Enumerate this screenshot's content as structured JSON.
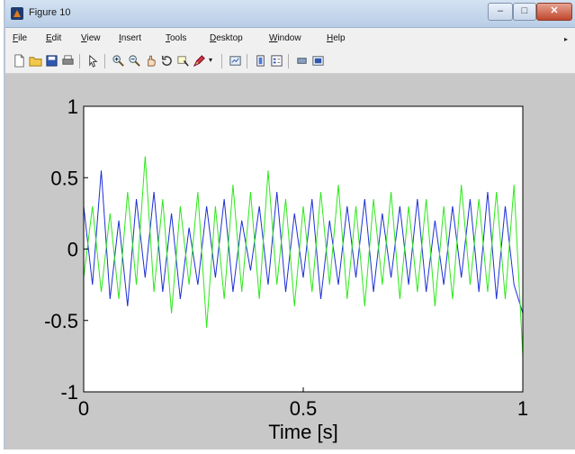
{
  "window": {
    "title": "Figure 10",
    "buttons": {
      "minimize": "–",
      "maximize": "□",
      "close": "✕"
    }
  },
  "menu": {
    "items": [
      {
        "label": "File",
        "u": "F",
        "rest": "ile"
      },
      {
        "label": "Edit",
        "u": "E",
        "rest": "dit"
      },
      {
        "label": "View",
        "u": "V",
        "rest": "iew"
      },
      {
        "label": "Insert",
        "u": "I",
        "rest": "nsert"
      },
      {
        "label": "Tools",
        "u": "T",
        "rest": "ools"
      },
      {
        "label": "Desktop",
        "u": "D",
        "rest": "esktop"
      },
      {
        "label": "Window",
        "u": "W",
        "rest": "indow"
      },
      {
        "label": "Help",
        "u": "H",
        "rest": "elp"
      }
    ],
    "overflow_arrow": "▸"
  },
  "toolbar": {
    "icons": [
      "new-figure-icon",
      "open-file-icon",
      "save-icon",
      "print-icon",
      "pointer-icon",
      "zoom-in-icon",
      "zoom-out-icon",
      "pan-icon",
      "rotate-3d-icon",
      "data-cursor-icon",
      "brush-icon",
      "brush-dropdown-icon",
      "link-plot-icon",
      "colorbar-icon",
      "legend-icon",
      "hide-plot-tools-icon",
      "show-plot-tools-icon"
    ]
  },
  "chart_data": {
    "type": "line",
    "title": "",
    "xlabel": "Time [s]",
    "ylabel": "",
    "xlim": [
      0,
      1
    ],
    "ylim": [
      -1,
      1
    ],
    "xticks": [
      "0",
      "0.5",
      "1"
    ],
    "yticks": [
      "1",
      "0.5",
      "0",
      "-0.5",
      "-1"
    ],
    "grid": false,
    "series": [
      {
        "color": "#1c2fd6",
        "x": [
          0,
          0.02,
          0.04,
          0.06,
          0.08,
          0.1,
          0.12,
          0.14,
          0.16,
          0.18,
          0.2,
          0.22,
          0.24,
          0.26,
          0.28,
          0.3,
          0.32,
          0.34,
          0.36,
          0.38,
          0.4,
          0.42,
          0.44,
          0.46,
          0.48,
          0.5,
          0.52,
          0.54,
          0.56,
          0.58,
          0.6,
          0.62,
          0.64,
          0.66,
          0.68,
          0.7,
          0.72,
          0.74,
          0.76,
          0.78,
          0.8,
          0.82,
          0.84,
          0.86,
          0.88,
          0.9,
          0.92,
          0.94,
          0.96,
          0.98,
          1.0
        ],
        "y": [
          0.3,
          -0.25,
          0.55,
          -0.35,
          0.2,
          -0.4,
          0.35,
          -0.2,
          0.4,
          -0.3,
          0.25,
          -0.35,
          0.15,
          -0.25,
          0.3,
          -0.2,
          0.35,
          -0.3,
          0.2,
          -0.15,
          0.3,
          -0.25,
          0.4,
          -0.3,
          0.25,
          -0.2,
          0.35,
          -0.35,
          0.2,
          -0.25,
          0.3,
          -0.2,
          0.35,
          -0.3,
          0.25,
          -0.2,
          0.3,
          -0.25,
          0.35,
          -0.3,
          0.2,
          -0.25,
          0.3,
          -0.2,
          0.35,
          -0.3,
          0.4,
          -0.35,
          0.3,
          -0.25,
          -0.45
        ]
      },
      {
        "color": "#2de81a",
        "x": [
          0,
          0.02,
          0.04,
          0.06,
          0.08,
          0.1,
          0.12,
          0.14,
          0.16,
          0.18,
          0.2,
          0.22,
          0.24,
          0.26,
          0.28,
          0.3,
          0.32,
          0.34,
          0.36,
          0.38,
          0.4,
          0.42,
          0.44,
          0.46,
          0.48,
          0.5,
          0.52,
          0.54,
          0.56,
          0.58,
          0.6,
          0.62,
          0.64,
          0.66,
          0.68,
          0.7,
          0.72,
          0.74,
          0.76,
          0.78,
          0.8,
          0.82,
          0.84,
          0.86,
          0.88,
          0.9,
          0.92,
          0.94,
          0.96,
          0.98,
          1.0
        ],
        "y": [
          -0.2,
          0.3,
          -0.3,
          0.25,
          -0.35,
          0.4,
          -0.25,
          0.65,
          -0.3,
          0.35,
          -0.45,
          0.3,
          -0.25,
          0.4,
          -0.55,
          0.3,
          -0.35,
          0.45,
          -0.3,
          0.4,
          -0.35,
          0.55,
          -0.25,
          0.35,
          -0.4,
          0.3,
          -0.3,
          0.4,
          -0.25,
          0.45,
          -0.35,
          0.3,
          -0.4,
          0.35,
          -0.25,
          0.4,
          -0.35,
          0.3,
          -0.3,
          0.35,
          -0.4,
          0.3,
          -0.35,
          0.45,
          -0.25,
          0.35,
          -0.3,
          0.4,
          -0.35,
          0.45,
          -0.75
        ]
      }
    ]
  }
}
